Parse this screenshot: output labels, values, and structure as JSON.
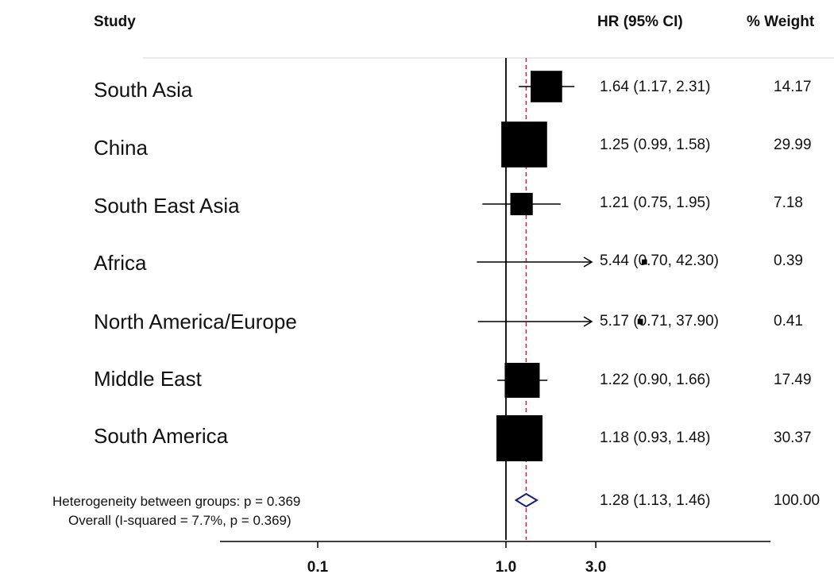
{
  "chart_data": {
    "type": "forest",
    "headers": {
      "study": "Study",
      "estimate": "HR (95% CI)",
      "weight": "% Weight"
    },
    "studies": [
      {
        "name": "South Asia",
        "hr": 1.64,
        "lo": 1.17,
        "hi": 2.31,
        "ci_text": "1.64 (1.17, 2.31)",
        "weight": 14.17,
        "weight_text": "14.17"
      },
      {
        "name": "China",
        "hr": 1.25,
        "lo": 0.99,
        "hi": 1.58,
        "ci_text": "1.25 (0.99, 1.58)",
        "weight": 29.99,
        "weight_text": "29.99"
      },
      {
        "name": "South East Asia",
        "hr": 1.21,
        "lo": 0.75,
        "hi": 1.95,
        "ci_text": "1.21 (0.75, 1.95)",
        "weight": 7.18,
        "weight_text": "7.18"
      },
      {
        "name": "Africa",
        "hr": 5.44,
        "lo": 0.7,
        "hi": 42.3,
        "ci_text": "5.44 (0.70, 42.30)",
        "weight": 0.39,
        "weight_text": "0.39"
      },
      {
        "name": "North America/Europe",
        "hr": 5.17,
        "lo": 0.71,
        "hi": 37.9,
        "ci_text": "5.17 (0.71, 37.90)",
        "weight": 0.41,
        "weight_text": "0.41"
      },
      {
        "name": "Middle East",
        "hr": 1.22,
        "lo": 0.9,
        "hi": 1.66,
        "ci_text": "1.22 (0.90, 1.66)",
        "weight": 17.49,
        "weight_text": "17.49"
      },
      {
        "name": "South America",
        "hr": 1.18,
        "lo": 0.93,
        "hi": 1.48,
        "ci_text": "1.18 (0.93, 1.48)",
        "weight": 30.37,
        "weight_text": "30.37"
      }
    ],
    "overall": {
      "label_line1": "Heterogeneity between groups: p = 0.369",
      "label_line2": "Overall  (I-squared = 7.7%, p = 0.369)",
      "hr": 1.28,
      "lo": 1.13,
      "hi": 1.46,
      "ci_text": "1.28 (1.13, 1.46)",
      "weight_text": "100.00"
    },
    "x_scale": "log",
    "x_ticks": [
      {
        "value": 0.1,
        "label": "0.1"
      },
      {
        "value": 1.0,
        "label": "1.0"
      },
      {
        "value": 3.0,
        "label": "3.0"
      }
    ],
    "null_line": 1.0,
    "reference_line": 1.28,
    "colors": {
      "marker": "#000000",
      "diamond": "#1a1a7a",
      "reference": "#b03040",
      "axis": "#000000"
    }
  }
}
